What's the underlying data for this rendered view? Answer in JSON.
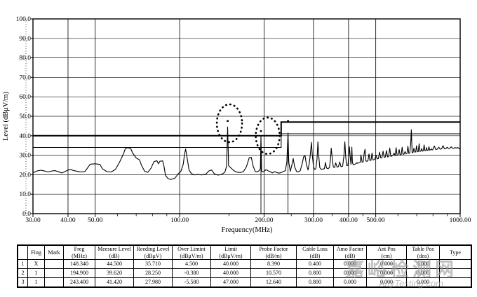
{
  "chart": {
    "ylabel": "Level (dBμV/m)",
    "xlabel": "Frequency(MHz)",
    "yticks": [
      "0.0",
      "10.0",
      "20.0",
      "30.0",
      "40.0",
      "50.0",
      "60.0",
      "70.0",
      "80.0",
      "90.0",
      "100.0"
    ],
    "xticks": [
      {
        "f": 30,
        "label": "30.00"
      },
      {
        "f": 40,
        "label": "40.00"
      },
      {
        "f": 50,
        "label": "50.00"
      },
      {
        "f": 100,
        "label": "100.00"
      },
      {
        "f": 200,
        "label": "200.00"
      },
      {
        "f": 300,
        "label": "300.00"
      },
      {
        "f": 400,
        "label": "400.00"
      },
      {
        "f": 500,
        "label": "500.00"
      },
      {
        "f": 1000,
        "label": "1000.00"
      }
    ]
  },
  "chart_data": {
    "type": "line",
    "title": "",
    "xlabel": "Frequency(MHz)",
    "ylabel": "Level (dBμV/m)",
    "xscale": "log",
    "xlim": [
      30,
      1000
    ],
    "ylim": [
      0,
      100
    ],
    "grid": true,
    "minor_xticks": [
      60,
      70,
      80,
      90,
      150,
      250,
      350,
      450,
      600,
      700,
      800,
      900
    ],
    "limit_lines": [
      {
        "name": "quasi_peak_limit",
        "points": [
          [
            30,
            40
          ],
          [
            230,
            40
          ],
          [
            230,
            47
          ],
          [
            1000,
            47
          ]
        ],
        "w": 2
      },
      {
        "name": "margin_line",
        "points": [
          [
            30,
            34
          ],
          [
            230,
            34
          ],
          [
            230,
            41
          ],
          [
            1000,
            41
          ]
        ],
        "w": 1.1
      }
    ],
    "series": [
      {
        "name": "measured_emission_trace",
        "points": [
          [
            30,
            21
          ],
          [
            31,
            21.9
          ],
          [
            32,
            22.3
          ],
          [
            33,
            21.9
          ],
          [
            34,
            21.4
          ],
          [
            35,
            21.9
          ],
          [
            36,
            22.1
          ],
          [
            37,
            21.5
          ],
          [
            38,
            20.9
          ],
          [
            39,
            21.6
          ],
          [
            40,
            22.4
          ],
          [
            41,
            22.6
          ],
          [
            42,
            22.1
          ],
          [
            43,
            21.8
          ],
          [
            44,
            21.5
          ],
          [
            45,
            21.4
          ],
          [
            46,
            21.7
          ],
          [
            47,
            23.6
          ],
          [
            48,
            25.4
          ],
          [
            50,
            25.6
          ],
          [
            52,
            25.3
          ],
          [
            53,
            23.1
          ],
          [
            55,
            21.6
          ],
          [
            57,
            21.4
          ],
          [
            59,
            22.7
          ],
          [
            61,
            26.3
          ],
          [
            63,
            30.6
          ],
          [
            64,
            33.3
          ],
          [
            65,
            33.9
          ],
          [
            66,
            33.7
          ],
          [
            67,
            33.3
          ],
          [
            68,
            31.1
          ],
          [
            70,
            28.6
          ],
          [
            72,
            27.6
          ],
          [
            73,
            25.1
          ],
          [
            75,
            21.8
          ],
          [
            77,
            21.2
          ],
          [
            79,
            23.3
          ],
          [
            81,
            26.7
          ],
          [
            83,
            27.2
          ],
          [
            84,
            25.6
          ],
          [
            85,
            26.9
          ],
          [
            87,
            27.1
          ],
          [
            88,
            24.1
          ],
          [
            89,
            19.6
          ],
          [
            91,
            17.9
          ],
          [
            93,
            17.6
          ],
          [
            96,
            18.1
          ],
          [
            99,
            20.6
          ],
          [
            101,
            21.7
          ],
          [
            103,
            25.3
          ],
          [
            104,
            30.1
          ],
          [
            105,
            33.2
          ],
          [
            106,
            29.9
          ],
          [
            108,
            22.4
          ],
          [
            110,
            20.6
          ],
          [
            113,
            19.9
          ],
          [
            116,
            20.1
          ],
          [
            120,
            19.9
          ],
          [
            124,
            20.3
          ],
          [
            127,
            21.9
          ],
          [
            130,
            22.4
          ],
          [
            133,
            20.4
          ],
          [
            137,
            19.8
          ],
          [
            141,
            20.1
          ],
          [
            145,
            21.3
          ],
          [
            147,
            24.3
          ],
          [
            148.3,
            44.5
          ],
          [
            149.5,
            24.6
          ],
          [
            152,
            23.6
          ],
          [
            156,
            22.1
          ],
          [
            160,
            21.3
          ],
          [
            165,
            21.1
          ],
          [
            169,
            21.7
          ],
          [
            173,
            24.1
          ],
          [
            177,
            28.7
          ],
          [
            180,
            28.9
          ],
          [
            183,
            24.1
          ],
          [
            186,
            21.7
          ],
          [
            189,
            21.4
          ],
          [
            192,
            22.1
          ],
          [
            194,
            23.1
          ],
          [
            194.9,
            39.6
          ],
          [
            196,
            21.7
          ],
          [
            199,
            21.4
          ],
          [
            203,
            22.6
          ],
          [
            206,
            22.1
          ],
          [
            210,
            21.6
          ],
          [
            214,
            20.9
          ],
          [
            218,
            21.6
          ],
          [
            222,
            21.1
          ],
          [
            226,
            20.8
          ],
          [
            230,
            21.1
          ],
          [
            234,
            21.6
          ],
          [
            238,
            22.1
          ],
          [
            241,
            26.3
          ],
          [
            243.4,
            41.4
          ],
          [
            245,
            26.3
          ],
          [
            248,
            21.7
          ],
          [
            251,
            24.7
          ],
          [
            254,
            28.3
          ],
          [
            257,
            24.1
          ],
          [
            261,
            21.7
          ],
          [
            265,
            21.4
          ],
          [
            269,
            22.1
          ],
          [
            273,
            25.3
          ],
          [
            277,
            29.3
          ],
          [
            280,
            29.7
          ],
          [
            283,
            25.1
          ],
          [
            287,
            22.4
          ],
          [
            290,
            26.3
          ],
          [
            292,
            29.7
          ],
          [
            295,
            36.6
          ],
          [
            297,
            30.1
          ],
          [
            300,
            24.1
          ],
          [
            303,
            22.7
          ],
          [
            306,
            23.1
          ],
          [
            309,
            28.3
          ],
          [
            311,
            36.9
          ],
          [
            313,
            30.1
          ],
          [
            316,
            23.6
          ],
          [
            320,
            22.7
          ],
          [
            324,
            22.9
          ],
          [
            328,
            23.1
          ],
          [
            331,
            26.3
          ],
          [
            334,
            23.4
          ],
          [
            338,
            23.1
          ],
          [
            342,
            23.7
          ],
          [
            345,
            28.3
          ],
          [
            347,
            33.6
          ],
          [
            350,
            28.1
          ],
          [
            353,
            23.9
          ],
          [
            357,
            23.7
          ],
          [
            360,
            26.1
          ],
          [
            364,
            23.9
          ],
          [
            368,
            24.1
          ],
          [
            372,
            26.6
          ],
          [
            376,
            24.1
          ],
          [
            381,
            24.3
          ],
          [
            385,
            29.3
          ],
          [
            388,
            36.9
          ],
          [
            391,
            29.1
          ],
          [
            394,
            24.7
          ],
          [
            398,
            24.7
          ],
          [
            401,
            30.1
          ],
          [
            403,
            34.3
          ],
          [
            405,
            30.1
          ],
          [
            408,
            25.3
          ],
          [
            410,
            29.9
          ],
          [
            411,
            34.1
          ],
          [
            413,
            26.1
          ],
          [
            416,
            25.1
          ],
          [
            420,
            25.3
          ],
          [
            424,
            25.6
          ],
          [
            428,
            26.1
          ],
          [
            432,
            25.9
          ],
          [
            436,
            26.1
          ],
          [
            440,
            26.3
          ],
          [
            443,
            30.1
          ],
          [
            447,
            26.4
          ],
          [
            451,
            26.6
          ],
          [
            455,
            31.1
          ],
          [
            458,
            33.1
          ],
          [
            461,
            27.1
          ],
          [
            465,
            26.9
          ],
          [
            469,
            27.1
          ],
          [
            473,
            30.6
          ],
          [
            477,
            27.3
          ],
          [
            481,
            27.4
          ],
          [
            485,
            31.1
          ],
          [
            489,
            27.6
          ],
          [
            493,
            27.7
          ],
          [
            497,
            28.1
          ],
          [
            501,
            30.1
          ],
          [
            506,
            28.1
          ],
          [
            511,
            28.3
          ],
          [
            516,
            31.6
          ],
          [
            521,
            28.6
          ],
          [
            526,
            28.7
          ],
          [
            531,
            32.1
          ],
          [
            536,
            28.9
          ],
          [
            541,
            29.1
          ],
          [
            546,
            32.4
          ],
          [
            551,
            29.1
          ],
          [
            556,
            29.3
          ],
          [
            561,
            33.7
          ],
          [
            566,
            29.4
          ],
          [
            571,
            29.6
          ],
          [
            576,
            29.9
          ],
          [
            581,
            31.1
          ],
          [
            586,
            29.7
          ],
          [
            591,
            33.9
          ],
          [
            596,
            29.9
          ],
          [
            601,
            30.1
          ],
          [
            606,
            32.9
          ],
          [
            611,
            30.1
          ],
          [
            616,
            30.3
          ],
          [
            621,
            34.1
          ],
          [
            626,
            30.4
          ],
          [
            631,
            30.6
          ],
          [
            636,
            31.9
          ],
          [
            641,
            30.7
          ],
          [
            646,
            30.9
          ],
          [
            651,
            34.6
          ],
          [
            656,
            30.9
          ],
          [
            661,
            31.1
          ],
          [
            666,
            35.6
          ],
          [
            670,
            43.1
          ],
          [
            674,
            31.3
          ],
          [
            679,
            31.4
          ],
          [
            684,
            33.6
          ],
          [
            689,
            31.6
          ],
          [
            694,
            31.7
          ],
          [
            699,
            34.9
          ],
          [
            704,
            31.7
          ],
          [
            709,
            31.9
          ],
          [
            714,
            35.9
          ],
          [
            719,
            31.9
          ],
          [
            724,
            32.1
          ],
          [
            729,
            33.4
          ],
          [
            734,
            32.1
          ],
          [
            739,
            32.3
          ],
          [
            744,
            35.3
          ],
          [
            749,
            32.3
          ],
          [
            754,
            32.4
          ],
          [
            759,
            33.9
          ],
          [
            764,
            32.4
          ],
          [
            769,
            32.6
          ],
          [
            774,
            34.4
          ],
          [
            779,
            32.6
          ],
          [
            784,
            32.7
          ],
          [
            789,
            33.3
          ],
          [
            794,
            32.7
          ],
          [
            799,
            32.9
          ],
          [
            809,
            34.7
          ],
          [
            819,
            32.9
          ],
          [
            829,
            33.1
          ],
          [
            839,
            34.1
          ],
          [
            849,
            33.1
          ],
          [
            859,
            33.3
          ],
          [
            869,
            34.9
          ],
          [
            879,
            33.3
          ],
          [
            889,
            33.4
          ],
          [
            899,
            34.1
          ],
          [
            909,
            33.4
          ],
          [
            919,
            33.6
          ],
          [
            929,
            34.3
          ],
          [
            939,
            33.6
          ],
          [
            949,
            33.6
          ],
          [
            959,
            33.9
          ],
          [
            969,
            33.7
          ],
          [
            979,
            33.9
          ],
          [
            989,
            33.7
          ],
          [
            1000,
            32.9
          ]
        ]
      }
    ],
    "peaks": [
      {
        "f": 148.34,
        "level": 44.5,
        "marker_level": 47.6,
        "drop_to_zero": false
      },
      {
        "f": 194.9,
        "level": 39.62,
        "marker_level": 42.4,
        "drop_to_zero": true
      },
      {
        "f": 243.4,
        "level": 41.42,
        "marker_level": 47.6,
        "drop_to_zero": true
      }
    ],
    "highlight_circles": [
      {
        "f": 150.5,
        "level": 46.4,
        "rx": 18,
        "ry": 27
      },
      {
        "f": 206,
        "level": 40.0,
        "rx": 17,
        "ry": 26
      }
    ]
  },
  "table": {
    "columns": [
      {
        "l1": "",
        "l2": ""
      },
      {
        "l1": "Fing",
        "l2": ""
      },
      {
        "l1": "Mark",
        "l2": ""
      },
      {
        "l1": "Freg",
        "l2": "(MHz)"
      },
      {
        "l1": "Meesure Level",
        "l2": "(dB)"
      },
      {
        "l1": "Reeding Level",
        "l2": "(dBμV)"
      },
      {
        "l1": "Over Limint",
        "l2": "(dBμV/m)"
      },
      {
        "l1": "Limit",
        "l2": "(dBμV/m)"
      },
      {
        "l1": "Probe Factor",
        "l2": "(dB/m)"
      },
      {
        "l1": "Cable Loss",
        "l2": "(dB)"
      },
      {
        "l1": "Amo Factor",
        "l2": "(dB)"
      },
      {
        "l1": "Ant Pos",
        "l2": "(cm)"
      },
      {
        "l1": "Table Pos",
        "l2": "(dea)"
      },
      {
        "l1": "Type",
        "l2": ""
      }
    ],
    "rows": [
      [
        "1",
        "X",
        "",
        "148.340",
        "44.500",
        "35.710",
        "4.500",
        "40.000",
        "8.390",
        "0.400",
        "0.000",
        "0.000",
        "0.000",
        ""
      ],
      [
        "2",
        "1",
        "",
        "194.900",
        "39.620",
        "28.250",
        "-0.380",
        "40.000",
        "10.570",
        "0.800",
        "0.000",
        "0.000",
        "0.000",
        ""
      ],
      [
        "3",
        "1",
        "",
        "243.400",
        "41.420",
        "27.980",
        "-5.580",
        "47.000",
        "12.640",
        "0.800",
        "0.000",
        "0.000",
        "0.000",
        ""
      ]
    ]
  },
  "watermark": {
    "cn": "嘉峪检测网",
    "en": "AnyTesting.com"
  }
}
